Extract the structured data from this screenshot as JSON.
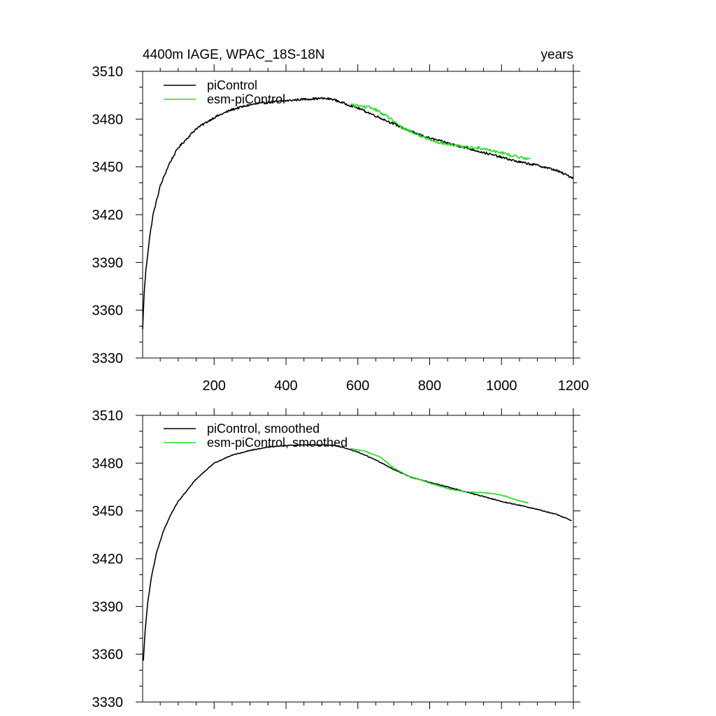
{
  "chart_data": [
    {
      "type": "line",
      "title": "4400m IAGE, WPAC_18S-18N",
      "xunits": "years",
      "xlim": [
        1,
        1200
      ],
      "ylim": [
        3330,
        3510
      ],
      "yticks": [
        3330,
        3360,
        3390,
        3420,
        3450,
        3480,
        3510
      ],
      "xticks": [
        200,
        400,
        600,
        800,
        1000,
        1200
      ],
      "show_x_tick_labels": true,
      "legend_position": "top-left",
      "series": [
        {
          "name": "piControl",
          "color": "#000000",
          "noise": 0.7,
          "points": [
            [
              1,
              3348
            ],
            [
              5,
              3370
            ],
            [
              10,
              3385
            ],
            [
              20,
              3405
            ],
            [
              30,
              3420
            ],
            [
              50,
              3438
            ],
            [
              75,
              3452
            ],
            [
              100,
              3462
            ],
            [
              150,
              3474
            ],
            [
              200,
              3481
            ],
            [
              250,
              3486
            ],
            [
              300,
              3489
            ],
            [
              350,
              3490.5
            ],
            [
              400,
              3491.5
            ],
            [
              450,
              3492.5
            ],
            [
              500,
              3493
            ],
            [
              530,
              3492.5
            ],
            [
              560,
              3490
            ],
            [
              600,
              3487
            ],
            [
              650,
              3482
            ],
            [
              700,
              3477
            ],
            [
              750,
              3472
            ],
            [
              800,
              3468
            ],
            [
              850,
              3465
            ],
            [
              900,
              3462
            ],
            [
              950,
              3459
            ],
            [
              1000,
              3456
            ],
            [
              1050,
              3453
            ],
            [
              1100,
              3451
            ],
            [
              1150,
              3448
            ],
            [
              1200,
              3443
            ]
          ]
        },
        {
          "name": "esm-piControl",
          "color": "#22dd22",
          "noise": 0.9,
          "points": [
            [
              580,
              3489
            ],
            [
              600,
              3488.5
            ],
            [
              640,
              3487
            ],
            [
              680,
              3482
            ],
            [
              720,
              3475
            ],
            [
              760,
              3471
            ],
            [
              800,
              3467
            ],
            [
              850,
              3464
            ],
            [
              900,
              3462.5
            ],
            [
              950,
              3461.5
            ],
            [
              1000,
              3459
            ],
            [
              1040,
              3456.5
            ],
            [
              1080,
              3455
            ]
          ]
        }
      ]
    },
    {
      "type": "line",
      "title": "",
      "xunits": "",
      "xlim": [
        1,
        1200
      ],
      "ylim": [
        3330,
        3510
      ],
      "yticks": [
        3330,
        3360,
        3390,
        3420,
        3450,
        3480,
        3510
      ],
      "xticks": [
        200,
        400,
        600,
        800,
        1000,
        1200
      ],
      "show_x_tick_labels": false,
      "legend_position": "top-left",
      "series": [
        {
          "name": "piControl, smoothed",
          "color": "#000000",
          "noise": 0.25,
          "points": [
            [
              3,
              3356
            ],
            [
              8,
              3375
            ],
            [
              15,
              3392
            ],
            [
              25,
              3408
            ],
            [
              40,
              3424
            ],
            [
              60,
              3438
            ],
            [
              80,
              3448
            ],
            [
              100,
              3456
            ],
            [
              150,
              3470
            ],
            [
              200,
              3480
            ],
            [
              250,
              3485
            ],
            [
              300,
              3488
            ],
            [
              350,
              3490
            ],
            [
              400,
              3491
            ],
            [
              450,
              3491.5
            ],
            [
              500,
              3491.5
            ],
            [
              540,
              3491
            ],
            [
              570,
              3489
            ],
            [
              600,
              3487
            ],
            [
              650,
              3482
            ],
            [
              700,
              3476
            ],
            [
              750,
              3471
            ],
            [
              800,
              3468
            ],
            [
              850,
              3465
            ],
            [
              900,
              3462
            ],
            [
              950,
              3459
            ],
            [
              1000,
              3456
            ],
            [
              1050,
              3453.5
            ],
            [
              1100,
              3451
            ],
            [
              1150,
              3448
            ],
            [
              1195,
              3444
            ]
          ]
        },
        {
          "name": "esm-piControl, smoothed",
          "color": "#22dd22",
          "noise": 0.25,
          "points": [
            [
              580,
              3489
            ],
            [
              620,
              3487.5
            ],
            [
              660,
              3484
            ],
            [
              700,
              3477
            ],
            [
              740,
              3472
            ],
            [
              780,
              3469
            ],
            [
              820,
              3466
            ],
            [
              860,
              3463.5
            ],
            [
              900,
              3462
            ],
            [
              950,
              3461.5
            ],
            [
              1000,
              3460
            ],
            [
              1040,
              3457
            ],
            [
              1075,
              3455
            ]
          ]
        }
      ]
    }
  ]
}
